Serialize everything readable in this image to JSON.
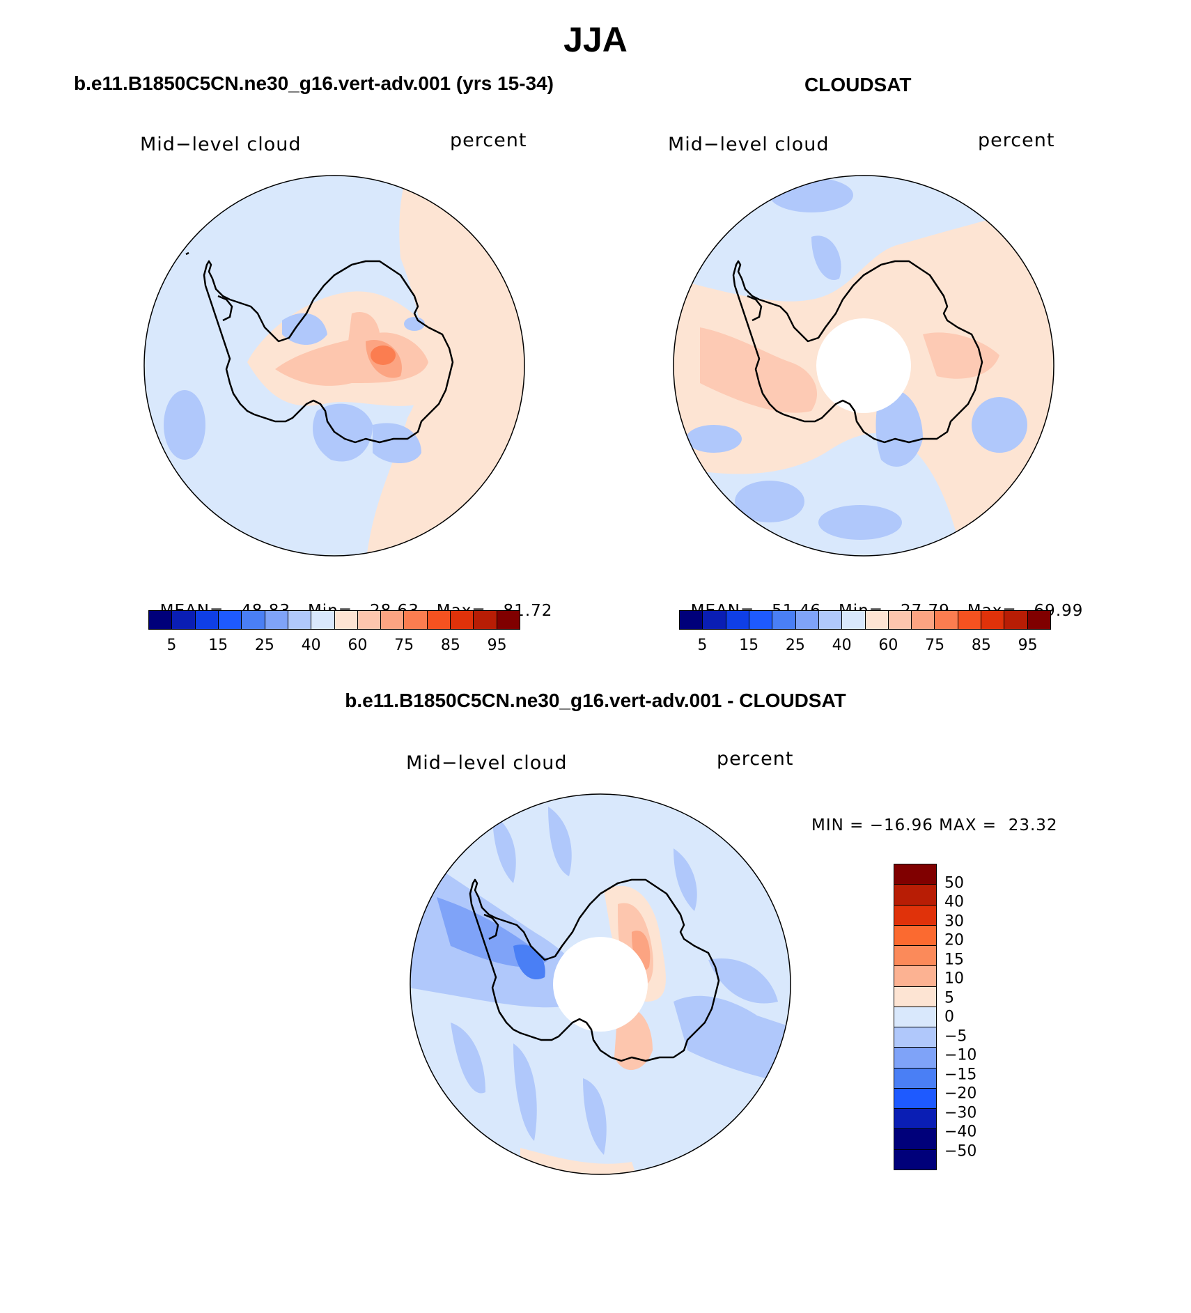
{
  "title": "JJA",
  "panels": [
    {
      "header": "b.e11.B1850C5CN.ne30_g16.vert-adv.001 (yrs 15-34)",
      "left_label": "Mid−level cloud",
      "right_label": "percent",
      "stats": {
        "mean_label": "MEAN=",
        "mean": "48.83",
        "min_label": "Min=",
        "min": "28.63",
        "max_label": "Max=",
        "max": "81.72"
      }
    },
    {
      "header": "CLOUDSAT",
      "left_label": "Mid−level cloud",
      "right_label": "percent",
      "stats": {
        "mean_label": "MEAN=",
        "mean": "51.46",
        "min_label": "Min=",
        "min": "27.79",
        "max_label": "Max=",
        "max": "69.99"
      }
    },
    {
      "header": "b.e11.B1850C5CN.ne30_g16.vert-adv.001 - CLOUDSAT",
      "left_label": "Mid−level cloud",
      "right_label": "percent",
      "minmax": "MIN = −16.96 MAX =  23.32"
    }
  ],
  "colorbar_abs": {
    "colors": [
      "#00007a",
      "#0a1eb4",
      "#0f3fe6",
      "#1e5aff",
      "#4a7ff5",
      "#7fa3f8",
      "#b0c8fb",
      "#d9e8fc",
      "#fde4d3",
      "#fdc6ae",
      "#fca482",
      "#fb7d50",
      "#f55220",
      "#e0320a",
      "#b81d05",
      "#800000"
    ],
    "ticks": [
      "5",
      "15",
      "25",
      "40",
      "60",
      "75",
      "85",
      "95"
    ]
  },
  "colorbar_diff": {
    "colors": [
      "#800000",
      "#b81d05",
      "#e0320a",
      "#fb6a30",
      "#fb8a5a",
      "#fcb292",
      "#fde4d3",
      "#d9e8fc",
      "#b0c8fb",
      "#7fa3f8",
      "#4a7ff5",
      "#1e5aff",
      "#0a1eb4",
      "#00007a",
      "#00007a"
    ],
    "ticks": [
      "50",
      "40",
      "30",
      "20",
      "15",
      "10",
      "5",
      "0",
      "−5",
      "−10",
      "−15",
      "−20",
      "−30",
      "−40",
      "−50"
    ]
  },
  "map_colors": {
    "ocean_light_blue": "#d9e8fc",
    "light_orange": "#fde4d3",
    "orange": "#fdc6ae",
    "med_orange": "#fca482",
    "red_orange": "#fb7d50",
    "blue": "#b0c8fb",
    "mid_blue": "#7fa3f8",
    "coastline": "#000000"
  }
}
